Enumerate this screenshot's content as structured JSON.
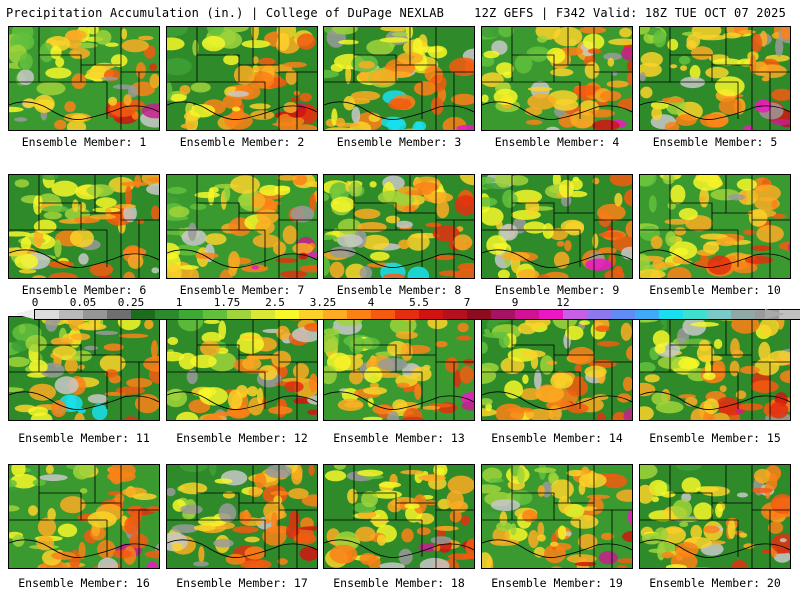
{
  "header": {
    "left_title": "Precipitation Accumulation (in.) | College of DuPage NEXLAB",
    "right_title": "12Z GEFS | F342 Valid: 18Z TUE OCT 07 2025"
  },
  "colorbar": {
    "labels": [
      "0",
      "0.05",
      "0.25",
      "1",
      "1.75",
      "2.5",
      "3.25",
      "4",
      "5.5",
      "7",
      "9",
      "12"
    ],
    "colors": [
      "#dcdcdc",
      "#b9b9b9",
      "#969696",
      "#6f6f6f",
      "#1d6b1d",
      "#2c8a2c",
      "#3fa935",
      "#63c03d",
      "#9fd43a",
      "#d9e837",
      "#f7f729",
      "#fbd22a",
      "#fcab22",
      "#fb8117",
      "#f45b10",
      "#e32f0f",
      "#d11412",
      "#b4111d",
      "#8e0c1f",
      "#a81266",
      "#d11294",
      "#ec17c4",
      "#c860e6",
      "#8f78ef",
      "#5f8cf5",
      "#3faaf7",
      "#19dff0",
      "#40e0d0",
      "#7ac8c8",
      "#8fa8a8",
      "#9a9a9a",
      "#c0c0c0"
    ],
    "left_arrow_color": "#eeeeee",
    "right_arrow_color": "#aaaaaa"
  },
  "members": [
    {
      "label": "Ensemble Member: 1"
    },
    {
      "label": "Ensemble Member: 2"
    },
    {
      "label": "Ensemble Member: 3"
    },
    {
      "label": "Ensemble Member: 4"
    },
    {
      "label": "Ensemble Member: 5"
    },
    {
      "label": "Ensemble Member: 6"
    },
    {
      "label": "Ensemble Member: 7"
    },
    {
      "label": "Ensemble Member: 8"
    },
    {
      "label": "Ensemble Member: 9"
    },
    {
      "label": "Ensemble Member: 10"
    },
    {
      "label": "Ensemble Member: 11"
    },
    {
      "label": "Ensemble Member: 12"
    },
    {
      "label": "Ensemble Member: 13"
    },
    {
      "label": "Ensemble Member: 14"
    },
    {
      "label": "Ensemble Member: 15"
    },
    {
      "label": "Ensemble Member: 16"
    },
    {
      "label": "Ensemble Member: 17"
    },
    {
      "label": "Ensemble Member: 18"
    },
    {
      "label": "Ensemble Member: 19"
    },
    {
      "label": "Ensemble Member: 20"
    }
  ]
}
